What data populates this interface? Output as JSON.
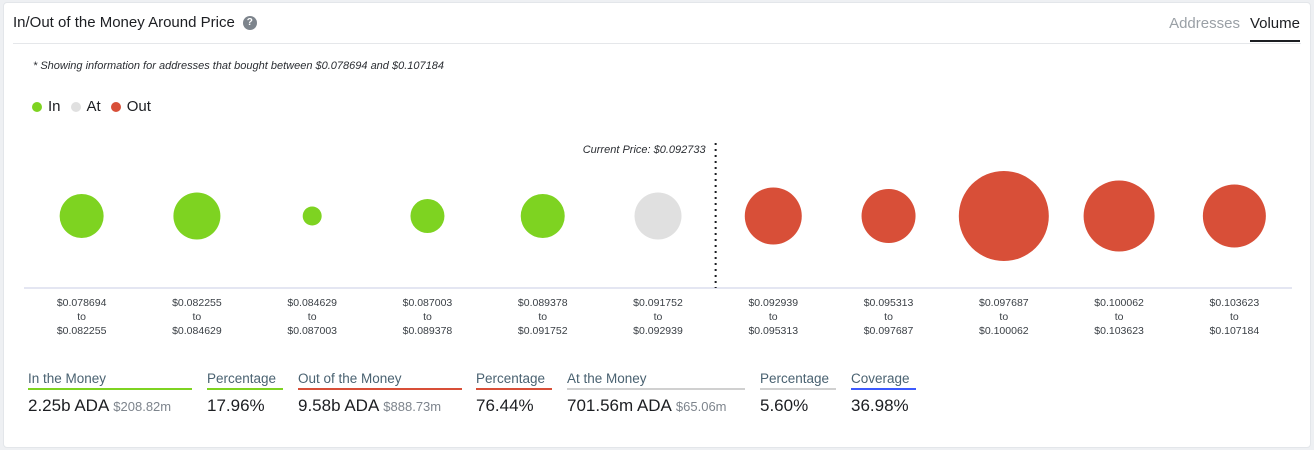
{
  "header": {
    "title": "In/Out of the Money Around Price",
    "tabs": [
      {
        "label": "Addresses"
      },
      {
        "label": "Volume"
      }
    ]
  },
  "note": "* Showing information for addresses that bought between $0.078694 and $0.107184",
  "legend": [
    {
      "label": "In",
      "color": "#7ed321"
    },
    {
      "label": "At",
      "color": "#e0e0e0"
    },
    {
      "label": "Out",
      "color": "#d84f38"
    }
  ],
  "chart_data": {
    "type": "scatter",
    "current_price_label": "Current Price: $0.092733",
    "current_price_position": "between buckets 6 and 7",
    "bubbles": [
      {
        "status": "in",
        "from": "$0.078694",
        "to": "$0.082255",
        "size": 44
      },
      {
        "status": "in",
        "from": "$0.082255",
        "to": "$0.084629",
        "size": 47
      },
      {
        "status": "in",
        "from": "$0.084629",
        "to": "$0.087003",
        "size": 19
      },
      {
        "status": "in",
        "from": "$0.087003",
        "to": "$0.089378",
        "size": 34
      },
      {
        "status": "in",
        "from": "$0.089378",
        "to": "$0.091752",
        "size": 44
      },
      {
        "status": "at",
        "from": "$0.091752",
        "to": "$0.092939",
        "size": 47
      },
      {
        "status": "out",
        "from": "$0.092939",
        "to": "$0.095313",
        "size": 57
      },
      {
        "status": "out",
        "from": "$0.095313",
        "to": "$0.097687",
        "size": 54
      },
      {
        "status": "out",
        "from": "$0.097687",
        "to": "$0.100062",
        "size": 90
      },
      {
        "status": "out",
        "from": "$0.100062",
        "to": "$0.103623",
        "size": 71
      },
      {
        "status": "out",
        "from": "$0.103623",
        "to": "$0.107184",
        "size": 63
      }
    ],
    "to_word": "to",
    "colors": {
      "in": "#7ed321",
      "at": "#e0e0e0",
      "out": "#d84f38"
    }
  },
  "stats": {
    "in_money": {
      "label": "In the Money",
      "value": "2.25b ADA",
      "sub": "$208.82m",
      "color": "#7ed321"
    },
    "in_pct": {
      "label": "Percentage",
      "value": "17.96%",
      "color": "#7ed321"
    },
    "out_money": {
      "label": "Out of the Money",
      "value": "9.58b ADA",
      "sub": "$888.73m",
      "color": "#d84f38"
    },
    "out_pct": {
      "label": "Percentage",
      "value": "76.44%",
      "color": "#d84f38"
    },
    "at_money": {
      "label": "At the Money",
      "value": "701.56m ADA",
      "sub": "$65.06m",
      "color": "#d0d0d0"
    },
    "at_pct": {
      "label": "Percentage",
      "value": "5.60%",
      "color": "#d0d0d0"
    },
    "coverage": {
      "label": "Coverage",
      "value": "36.98%",
      "color": "#3d5afe"
    }
  }
}
